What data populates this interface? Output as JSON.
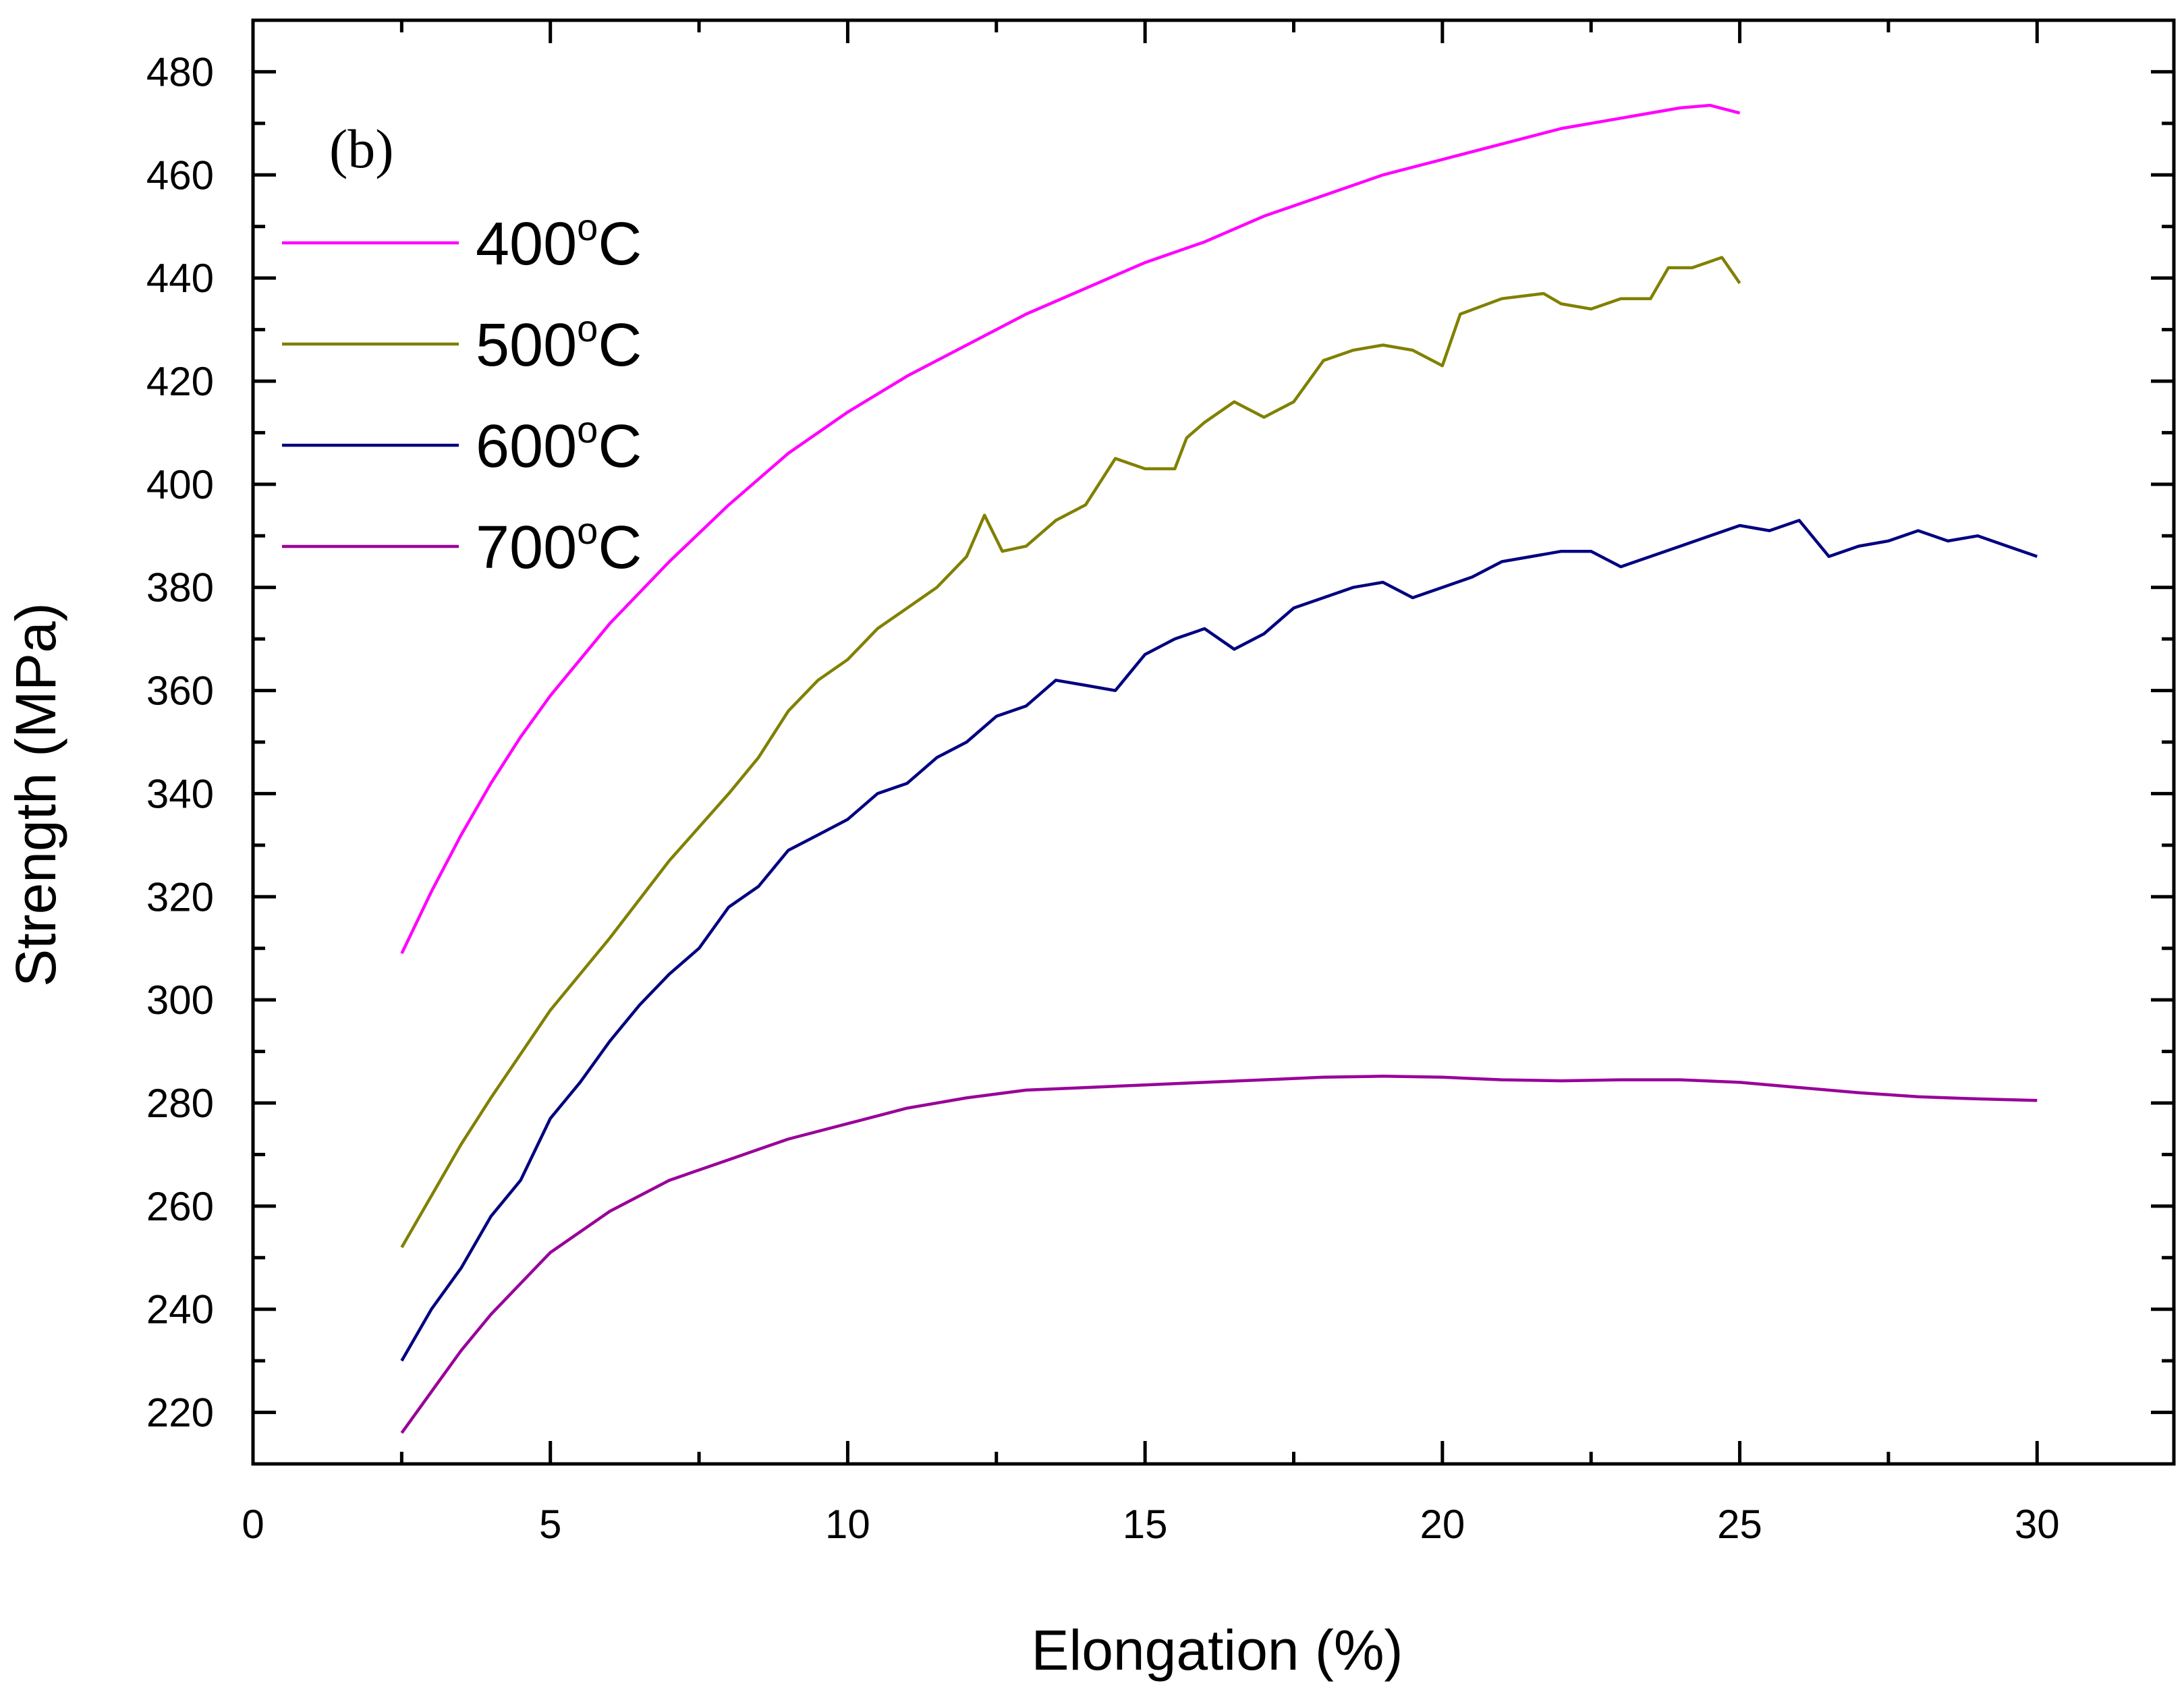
{
  "chart_data": {
    "type": "line",
    "panel_label": "(b)",
    "xlabel": "Elongation (%)",
    "ylabel": "Strength (MPa)",
    "xlim": [
      0,
      32.3
    ],
    "ylim": [
      210,
      490
    ],
    "x_ticks": [
      0,
      5,
      10,
      15,
      20,
      25,
      30
    ],
    "y_ticks": [
      220,
      240,
      260,
      280,
      300,
      320,
      340,
      360,
      380,
      400,
      420,
      440,
      460,
      480
    ],
    "x_minor_step": 2.5,
    "y_minor_step": 10,
    "legend_position": "top-left",
    "grid": false,
    "series": [
      {
        "name": "400°C",
        "label_main": "400",
        "label_sup": "o",
        "label_unit": "C",
        "color": "#ff00ff",
        "points": [
          [
            2.5,
            309
          ],
          [
            3,
            321
          ],
          [
            3.5,
            332
          ],
          [
            4,
            342
          ],
          [
            4.5,
            351
          ],
          [
            5,
            359
          ],
          [
            6,
            373
          ],
          [
            7,
            385
          ],
          [
            8,
            396
          ],
          [
            9,
            406
          ],
          [
            10,
            414
          ],
          [
            11,
            421
          ],
          [
            12,
            427
          ],
          [
            13,
            433
          ],
          [
            14,
            438
          ],
          [
            15,
            443
          ],
          [
            16,
            447
          ],
          [
            17,
            452
          ],
          [
            18,
            456
          ],
          [
            19,
            460
          ],
          [
            20,
            463
          ],
          [
            21,
            466
          ],
          [
            22,
            469
          ],
          [
            23,
            471
          ],
          [
            24,
            473
          ],
          [
            24.5,
            473.5
          ],
          [
            25,
            472
          ]
        ]
      },
      {
        "name": "500°C",
        "label_main": "500",
        "label_sup": "o",
        "label_unit": "C",
        "color": "#808000",
        "points": [
          [
            2.5,
            252
          ],
          [
            3,
            262
          ],
          [
            3.5,
            272
          ],
          [
            4,
            281
          ],
          [
            5,
            298
          ],
          [
            6,
            312
          ],
          [
            7,
            327
          ],
          [
            8,
            340
          ],
          [
            8.5,
            347
          ],
          [
            9,
            356
          ],
          [
            9.5,
            362
          ],
          [
            10,
            366
          ],
          [
            10.5,
            372
          ],
          [
            11,
            376
          ],
          [
            11.5,
            380
          ],
          [
            12,
            386
          ],
          [
            12.3,
            394
          ],
          [
            12.6,
            387
          ],
          [
            13,
            388
          ],
          [
            13.5,
            393
          ],
          [
            14,
            396
          ],
          [
            14.5,
            405
          ],
          [
            15,
            403
          ],
          [
            15.5,
            403
          ],
          [
            15.7,
            409
          ],
          [
            16,
            412
          ],
          [
            16.5,
            416
          ],
          [
            17,
            413
          ],
          [
            17.5,
            416
          ],
          [
            18,
            424
          ],
          [
            18.5,
            426
          ],
          [
            19,
            427
          ],
          [
            19.5,
            426
          ],
          [
            20,
            423
          ],
          [
            20.3,
            433
          ],
          [
            21,
            436
          ],
          [
            21.7,
            437
          ],
          [
            22,
            435
          ],
          [
            22.5,
            434
          ],
          [
            23,
            436
          ],
          [
            23.5,
            436
          ],
          [
            23.8,
            442
          ],
          [
            24.2,
            442
          ],
          [
            24.7,
            444
          ],
          [
            25,
            439
          ]
        ]
      },
      {
        "name": "600°C",
        "label_main": "600",
        "label_sup": "o",
        "label_unit": "C",
        "color": "#000080",
        "points": [
          [
            2.5,
            230
          ],
          [
            3,
            240
          ],
          [
            3.5,
            248
          ],
          [
            4,
            258
          ],
          [
            4.5,
            265
          ],
          [
            5,
            277
          ],
          [
            5.5,
            284
          ],
          [
            6,
            292
          ],
          [
            6.5,
            299
          ],
          [
            7,
            305
          ],
          [
            7.5,
            310
          ],
          [
            8,
            318
          ],
          [
            8.5,
            322
          ],
          [
            9,
            329
          ],
          [
            9.5,
            332
          ],
          [
            10,
            335
          ],
          [
            10.5,
            340
          ],
          [
            11,
            342
          ],
          [
            11.5,
            347
          ],
          [
            12,
            350
          ],
          [
            12.5,
            355
          ],
          [
            13,
            357
          ],
          [
            13.5,
            362
          ],
          [
            14,
            361
          ],
          [
            14.5,
            360
          ],
          [
            15,
            367
          ],
          [
            15.5,
            370
          ],
          [
            16,
            372
          ],
          [
            16.5,
            368
          ],
          [
            17,
            371
          ],
          [
            17.5,
            376
          ],
          [
            18,
            378
          ],
          [
            18.5,
            380
          ],
          [
            19,
            381
          ],
          [
            19.5,
            378
          ],
          [
            20,
            380
          ],
          [
            20.5,
            382
          ],
          [
            21,
            385
          ],
          [
            21.5,
            386
          ],
          [
            22,
            387
          ],
          [
            22.5,
            387
          ],
          [
            23,
            384
          ],
          [
            23.5,
            386
          ],
          [
            24,
            388
          ],
          [
            24.5,
            390
          ],
          [
            25,
            392
          ],
          [
            25.5,
            391
          ],
          [
            26,
            393
          ],
          [
            26.5,
            386
          ],
          [
            27,
            388
          ],
          [
            27.5,
            389
          ],
          [
            28,
            391
          ],
          [
            28.5,
            389
          ],
          [
            29,
            390
          ],
          [
            29.5,
            388
          ],
          [
            30,
            386
          ]
        ]
      },
      {
        "name": "700°C",
        "label_main": "700",
        "label_sup": "o",
        "label_unit": "C",
        "color": "#990099",
        "points": [
          [
            2.5,
            216
          ],
          [
            3,
            224
          ],
          [
            3.5,
            232
          ],
          [
            4,
            239
          ],
          [
            4.5,
            245
          ],
          [
            5,
            251
          ],
          [
            6,
            259
          ],
          [
            7,
            265
          ],
          [
            8,
            269
          ],
          [
            9,
            273
          ],
          [
            10,
            276
          ],
          [
            11,
            279
          ],
          [
            12,
            281
          ],
          [
            13,
            282.5
          ],
          [
            14,
            283
          ],
          [
            15,
            283.5
          ],
          [
            16,
            284
          ],
          [
            17,
            284.5
          ],
          [
            18,
            285
          ],
          [
            19,
            285.2
          ],
          [
            20,
            285
          ],
          [
            21,
            284.5
          ],
          [
            22,
            284.3
          ],
          [
            23,
            284.5
          ],
          [
            24,
            284.5
          ],
          [
            25,
            284
          ],
          [
            26,
            283
          ],
          [
            27,
            282
          ],
          [
            28,
            281.2
          ],
          [
            29,
            280.8
          ],
          [
            30,
            280.5
          ]
        ]
      }
    ]
  }
}
